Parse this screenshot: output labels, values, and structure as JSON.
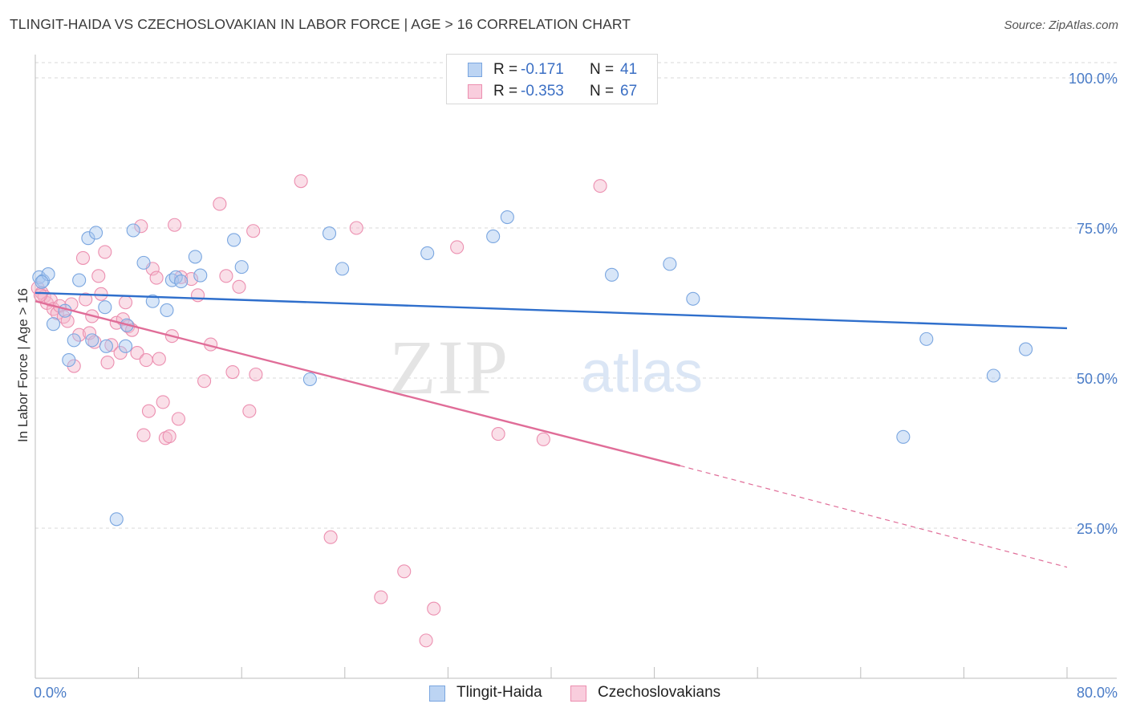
{
  "header": {
    "title": "TLINGIT-HAIDA VS CZECHOSLOVAKIAN IN LABOR FORCE | AGE > 16 CORRELATION CHART",
    "source": "Source: ZipAtlas.com"
  },
  "watermark": {
    "zip": "ZIP",
    "atlas": "atlas"
  },
  "legend_top": [
    {
      "r_label": "R =",
      "r_value": "-0.171",
      "n_label": "N =",
      "n_value": "41"
    },
    {
      "r_label": "R =",
      "r_value": "-0.353",
      "n_label": "N =",
      "n_value": "67"
    }
  ],
  "legend_bottom": [
    "Tlingit-Haida",
    "Czechoslovakians"
  ],
  "colors": {
    "tlingit_fill": "#a9c8f0",
    "tlingit_stroke": "#7aa6e0",
    "tlingit_line": "#2f6fcc",
    "czech_fill": "#f5b7cc",
    "czech_stroke": "#ec8fb0",
    "czech_line": "#e06d98",
    "tick_text": "#4a7cc7",
    "grid": "#d9d9d9"
  },
  "chart_data": {
    "type": "scatter",
    "title": "TLINGIT-HAIDA VS CZECHOSLOVAKIAN IN LABOR FORCE | AGE > 16 CORRELATION CHART",
    "xlabel": "",
    "ylabel": "In Labor Force | Age > 16",
    "xlim": [
      0,
      80
    ],
    "ylim": [
      0,
      106
    ],
    "x_tick_labels": [
      "0.0%",
      "80.0%"
    ],
    "y_ticks": [
      25,
      50,
      75,
      100
    ],
    "y_tick_labels": [
      "25.0%",
      "50.0%",
      "75.0%",
      "100.0%"
    ],
    "grid": "horizontal dashed",
    "series": [
      {
        "name": "Tlingit-Haida",
        "points": [
          [
            0.3,
            66.8
          ],
          [
            0.6,
            66.2
          ],
          [
            1.0,
            67.3
          ],
          [
            1.4,
            59.0
          ],
          [
            2.3,
            61.2
          ],
          [
            2.6,
            53.0
          ],
          [
            3.0,
            56.3
          ],
          [
            3.4,
            66.3
          ],
          [
            4.1,
            73.3
          ],
          [
            4.4,
            56.3
          ],
          [
            4.7,
            74.2
          ],
          [
            5.4,
            61.8
          ],
          [
            5.5,
            55.3
          ],
          [
            6.3,
            26.5
          ],
          [
            7.0,
            55.3
          ],
          [
            7.1,
            58.8
          ],
          [
            7.6,
            74.6
          ],
          [
            8.4,
            69.2
          ],
          [
            9.1,
            62.8
          ],
          [
            10.2,
            61.3
          ],
          [
            10.6,
            66.3
          ],
          [
            10.9,
            66.8
          ],
          [
            11.3,
            66.1
          ],
          [
            12.4,
            70.2
          ],
          [
            12.8,
            67.1
          ],
          [
            15.4,
            73.0
          ],
          [
            16.0,
            68.5
          ],
          [
            21.3,
            49.8
          ],
          [
            22.8,
            74.1
          ],
          [
            23.8,
            68.2
          ],
          [
            30.4,
            70.8
          ],
          [
            35.5,
            73.6
          ],
          [
            36.6,
            76.8
          ],
          [
            44.7,
            67.2
          ],
          [
            49.2,
            69.0
          ],
          [
            51.0,
            63.2
          ],
          [
            67.3,
            40.2
          ],
          [
            69.1,
            56.5
          ],
          [
            74.3,
            50.4
          ],
          [
            76.8,
            54.8
          ],
          [
            0.5,
            66.0
          ]
        ]
      },
      {
        "name": "Czechoslovakians",
        "points": [
          [
            0.2,
            65.0
          ],
          [
            0.5,
            64.2
          ],
          [
            0.7,
            63.6
          ],
          [
            0.9,
            62.5
          ],
          [
            1.2,
            63.0
          ],
          [
            1.4,
            61.5
          ],
          [
            1.7,
            60.8
          ],
          [
            1.9,
            62.0
          ],
          [
            2.2,
            60.2
          ],
          [
            2.5,
            59.5
          ],
          [
            2.8,
            62.3
          ],
          [
            3.0,
            52.0
          ],
          [
            3.4,
            57.2
          ],
          [
            3.7,
            70.0
          ],
          [
            3.9,
            63.1
          ],
          [
            4.2,
            57.5
          ],
          [
            4.4,
            60.3
          ],
          [
            4.6,
            56.0
          ],
          [
            4.9,
            67.0
          ],
          [
            5.1,
            64.0
          ],
          [
            5.4,
            71.0
          ],
          [
            5.6,
            52.6
          ],
          [
            5.9,
            55.5
          ],
          [
            6.3,
            59.2
          ],
          [
            6.6,
            54.2
          ],
          [
            6.8,
            59.8
          ],
          [
            7.0,
            62.6
          ],
          [
            7.2,
            58.6
          ],
          [
            7.5,
            58.0
          ],
          [
            7.9,
            54.2
          ],
          [
            8.2,
            75.3
          ],
          [
            8.4,
            40.5
          ],
          [
            8.6,
            53.0
          ],
          [
            8.8,
            44.5
          ],
          [
            9.1,
            68.2
          ],
          [
            9.4,
            66.7
          ],
          [
            9.6,
            53.2
          ],
          [
            9.9,
            46.0
          ],
          [
            10.1,
            40.0
          ],
          [
            10.4,
            40.3
          ],
          [
            10.6,
            57.0
          ],
          [
            10.8,
            75.5
          ],
          [
            11.1,
            43.2
          ],
          [
            11.3,
            66.8
          ],
          [
            12.1,
            66.5
          ],
          [
            12.6,
            63.8
          ],
          [
            13.1,
            49.5
          ],
          [
            13.6,
            55.6
          ],
          [
            14.3,
            79.0
          ],
          [
            14.8,
            67.0
          ],
          [
            15.3,
            51.0
          ],
          [
            15.8,
            65.2
          ],
          [
            16.6,
            44.5
          ],
          [
            16.9,
            74.5
          ],
          [
            17.1,
            50.6
          ],
          [
            20.6,
            82.8
          ],
          [
            22.9,
            23.5
          ],
          [
            24.9,
            75.0
          ],
          [
            26.8,
            13.5
          ],
          [
            28.6,
            17.8
          ],
          [
            30.3,
            6.3
          ],
          [
            30.9,
            11.6
          ],
          [
            32.7,
            71.8
          ],
          [
            35.9,
            40.7
          ],
          [
            39.4,
            39.8
          ],
          [
            43.8,
            82.0
          ],
          [
            0.4,
            63.8
          ]
        ]
      }
    ],
    "trend_lines": [
      {
        "series": "Tlingit-Haida",
        "x": [
          0,
          80
        ],
        "y": [
          64.2,
          58.3
        ],
        "style": "solid"
      },
      {
        "series": "Czechoslovakians",
        "x": [
          0,
          50
        ],
        "y": [
          62.8,
          35.4
        ],
        "style": "solid"
      },
      {
        "series": "Czechoslovakians",
        "x": [
          50,
          80
        ],
        "y": [
          35.4,
          18.5
        ],
        "style": "dashed"
      }
    ]
  }
}
